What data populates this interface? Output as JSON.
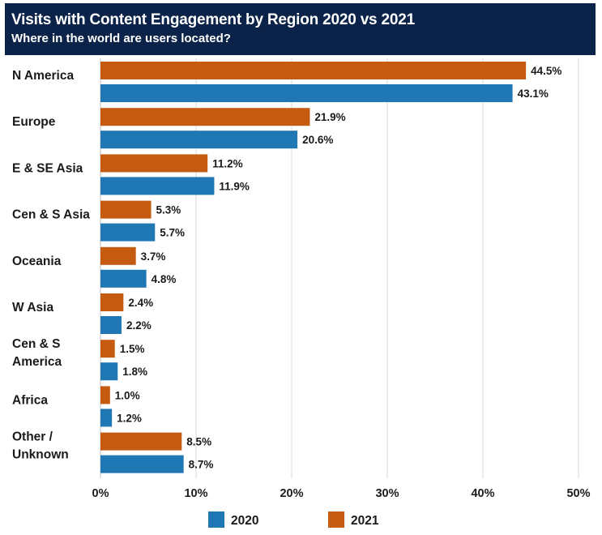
{
  "header": {
    "title": "Visits with Content Engagement by Region 2020 vs 2021",
    "subtitle": "Where in the world are users located?"
  },
  "chart_data": {
    "type": "bar",
    "orientation": "horizontal",
    "title": "Visits with Content Engagement by Region 2020 vs 2021",
    "subtitle": "Where in the world are users located?",
    "categories": [
      [
        "N America"
      ],
      [
        "Europe"
      ],
      [
        "E & SE Asia"
      ],
      [
        "Cen & S Asia"
      ],
      [
        "Oceania"
      ],
      [
        "W Asia"
      ],
      [
        "Cen & S",
        "America"
      ],
      [
        "Africa"
      ],
      [
        "Other /",
        "Unknown"
      ]
    ],
    "series": [
      {
        "name": "2021",
        "color": "#c55a11",
        "values": [
          44.5,
          21.9,
          11.2,
          5.3,
          3.7,
          2.4,
          1.5,
          1.0,
          8.5
        ]
      },
      {
        "name": "2020",
        "color": "#1f77b4",
        "values": [
          43.1,
          20.6,
          11.9,
          5.7,
          4.8,
          2.2,
          1.8,
          1.2,
          8.7
        ]
      }
    ],
    "xlim": [
      0,
      50
    ],
    "xticks": [
      0,
      10,
      20,
      30,
      40,
      50
    ],
    "tick_suffix": "%",
    "value_suffix": "%",
    "grid": true,
    "legend": {
      "position": "bottom",
      "order": [
        "2020",
        "2021"
      ]
    }
  }
}
